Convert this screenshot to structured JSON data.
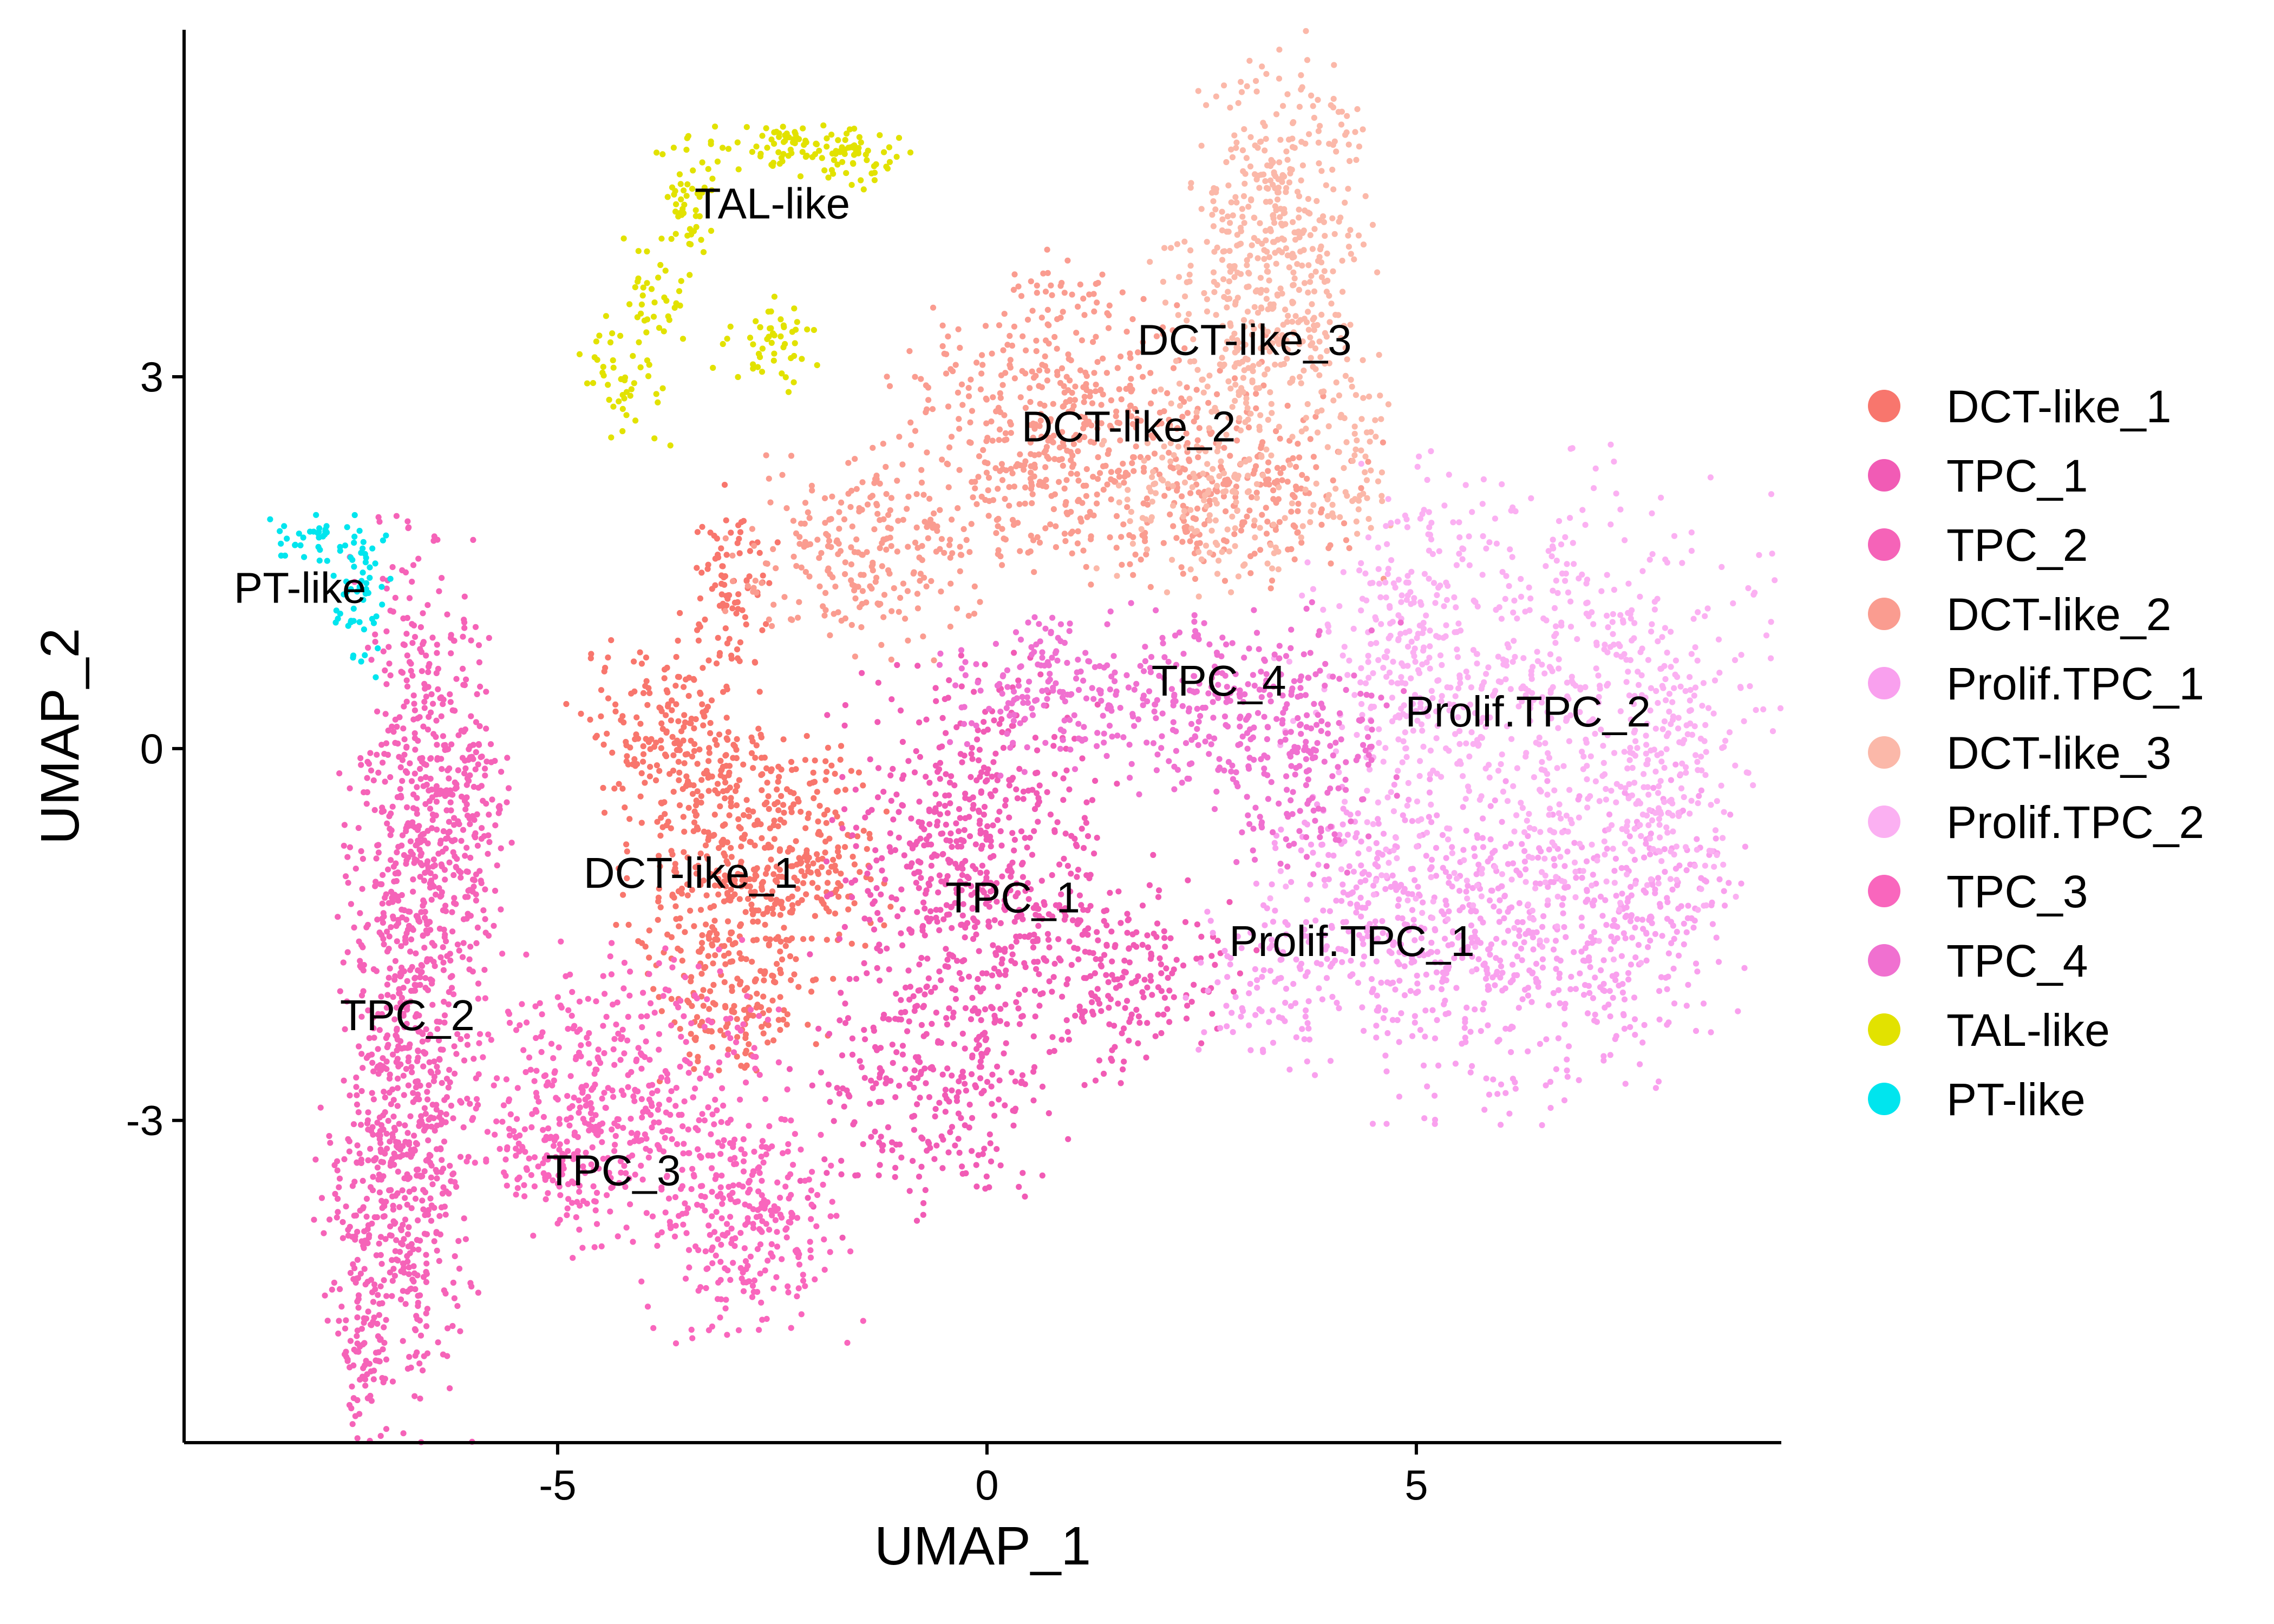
{
  "chart_data": {
    "type": "scatter",
    "xlabel": "UMAP_1",
    "ylabel": "UMAP_2",
    "xlim": [
      -9.35,
      9.25
    ],
    "ylim": [
      -5.6,
      5.8
    ],
    "x_ticks": [
      {
        "value": -5,
        "label": "-5"
      },
      {
        "value": 0,
        "label": "0"
      },
      {
        "value": 5,
        "label": "5"
      }
    ],
    "y_ticks": [
      {
        "value": -3,
        "label": "-3"
      },
      {
        "value": 0,
        "label": "0"
      },
      {
        "value": 3,
        "label": "3"
      }
    ],
    "grid": false,
    "legend_position": "right",
    "series": [
      {
        "name": "DCT-like_1",
        "color": "#F8766D",
        "label_at": [
          -3.45,
          -1.0
        ],
        "blobs": [
          {
            "cx": -3.0,
            "cy": -1.2,
            "sx": 0.55,
            "sy": 0.65,
            "n": 380
          },
          {
            "cx": -3.6,
            "cy": 0.1,
            "sx": 0.55,
            "sy": 0.35,
            "n": 220
          },
          {
            "cx": -2.05,
            "cy": -0.8,
            "sx": 0.4,
            "sy": 0.4,
            "n": 180
          },
          {
            "cx": -3.0,
            "cy": 1.3,
            "sx": 0.25,
            "sy": 0.35,
            "n": 90
          },
          {
            "cx": -2.8,
            "cy": -2.2,
            "sx": 0.3,
            "sy": 0.2,
            "n": 60
          }
        ]
      },
      {
        "name": "TPC_1",
        "color": "#F15BB5",
        "label_at": [
          0.3,
          -1.2
        ],
        "blobs": [
          {
            "cx": -0.2,
            "cy": -1.0,
            "sx": 0.75,
            "sy": 0.75,
            "n": 650
          },
          {
            "cx": 1.5,
            "cy": -1.8,
            "sx": 0.7,
            "sy": 0.4,
            "n": 220
          },
          {
            "cx": -0.7,
            "cy": -2.9,
            "sx": 0.7,
            "sy": 0.45,
            "n": 230
          }
        ]
      },
      {
        "name": "TPC_2",
        "color": "#F563B8",
        "label_at": [
          -6.75,
          -2.15
        ],
        "blobs": [
          {
            "cx": -6.75,
            "cy": -1.8,
            "sx": 0.35,
            "sy": 1.7,
            "n": 750
          },
          {
            "cx": -6.9,
            "cy": -3.6,
            "sx": 0.4,
            "sy": 0.55,
            "n": 250
          },
          {
            "cx": -7.3,
            "cy": -4.85,
            "sx": 0.12,
            "sy": 0.35,
            "n": 70
          },
          {
            "cx": -6.3,
            "cy": 0.0,
            "sx": 0.3,
            "sy": 0.6,
            "n": 150
          },
          {
            "cx": -6.1,
            "cy": -0.9,
            "sx": 0.3,
            "sy": 0.5,
            "n": 120
          }
        ]
      },
      {
        "name": "DCT-like_2",
        "color": "#FA9C90",
        "label_at": [
          1.65,
          2.6
        ],
        "blobs": [
          {
            "cx": 1.0,
            "cy": 2.5,
            "sx": 1.0,
            "sy": 0.5,
            "n": 550
          },
          {
            "cx": 3.1,
            "cy": 2.1,
            "sx": 0.65,
            "sy": 0.35,
            "n": 180
          },
          {
            "cx": -1.5,
            "cy": 1.55,
            "sx": 0.7,
            "sy": 0.35,
            "n": 230
          },
          {
            "cx": 0.9,
            "cy": 3.65,
            "sx": 0.3,
            "sy": 0.2,
            "n": 40
          }
        ]
      },
      {
        "name": "Prolif.TPC_1",
        "color": "#F9A0EE",
        "label_at": [
          4.25,
          -1.55
        ],
        "blobs": [
          {
            "cx": 5.9,
            "cy": -1.6,
            "sx": 0.9,
            "sy": 0.6,
            "n": 500
          },
          {
            "cx": 7.8,
            "cy": -1.3,
            "sx": 0.45,
            "sy": 0.5,
            "n": 180
          },
          {
            "cx": 4.2,
            "cy": -1.3,
            "sx": 0.5,
            "sy": 0.5,
            "n": 150
          },
          {
            "cx": 3.2,
            "cy": -1.9,
            "sx": 0.4,
            "sy": 0.3,
            "n": 80
          }
        ]
      },
      {
        "name": "DCT-like_3",
        "color": "#FBB8A9",
        "label_at": [
          3.0,
          3.3
        ],
        "blobs": [
          {
            "cx": 3.4,
            "cy": 4.4,
            "sx": 0.5,
            "sy": 0.6,
            "n": 300
          },
          {
            "cx": 3.2,
            "cy": 3.3,
            "sx": 0.6,
            "sy": 0.45,
            "n": 250
          },
          {
            "cx": 2.5,
            "cy": 2.0,
            "sx": 0.55,
            "sy": 0.4,
            "n": 150
          },
          {
            "cx": 4.3,
            "cy": 2.3,
            "sx": 0.3,
            "sy": 0.35,
            "n": 60
          }
        ]
      },
      {
        "name": "Prolif.TPC_2",
        "color": "#FBB0F2",
        "label_at": [
          6.3,
          0.3
        ],
        "blobs": [
          {
            "cx": 6.4,
            "cy": 0.3,
            "sx": 1.3,
            "sy": 0.9,
            "n": 700
          },
          {
            "cx": 4.8,
            "cy": 1.0,
            "sx": 0.4,
            "sy": 0.55,
            "n": 140
          },
          {
            "cx": 7.9,
            "cy": -0.1,
            "sx": 0.3,
            "sy": 0.55,
            "n": 120
          }
        ]
      },
      {
        "name": "TPC_3",
        "color": "#F966BD",
        "label_at": [
          -4.35,
          -3.4
        ],
        "blobs": [
          {
            "cx": -4.2,
            "cy": -2.8,
            "sx": 0.85,
            "sy": 0.55,
            "n": 450
          },
          {
            "cx": -2.8,
            "cy": -3.9,
            "sx": 0.6,
            "sy": 0.4,
            "n": 250
          },
          {
            "cx": -5.1,
            "cy": -3.3,
            "sx": 0.5,
            "sy": 0.35,
            "n": 100
          }
        ]
      },
      {
        "name": "TPC_4",
        "color": "#F070D0",
        "label_at": [
          2.7,
          0.55
        ],
        "blobs": [
          {
            "cx": 2.8,
            "cy": 0.35,
            "sx": 0.9,
            "sy": 0.35,
            "n": 300
          },
          {
            "cx": 0.6,
            "cy": 0.5,
            "sx": 0.55,
            "sy": 0.3,
            "n": 150
          },
          {
            "cx": 3.6,
            "cy": -0.3,
            "sx": 0.5,
            "sy": 0.35,
            "n": 100
          }
        ]
      },
      {
        "name": "TAL-like",
        "color": "#E2E200",
        "label_at": [
          -2.5,
          4.4
        ],
        "blobs": [
          {
            "cx": -3.5,
            "cy": 4.4,
            "sx": 0.2,
            "sy": 0.25,
            "n": 50
          },
          {
            "cx": -2.3,
            "cy": 4.85,
            "sx": 0.5,
            "sy": 0.1,
            "n": 80
          },
          {
            "cx": -1.5,
            "cy": 4.75,
            "sx": 0.3,
            "sy": 0.12,
            "n": 40
          },
          {
            "cx": -4.2,
            "cy": 3.0,
            "sx": 0.25,
            "sy": 0.3,
            "n": 50
          },
          {
            "cx": -3.9,
            "cy": 3.65,
            "sx": 0.2,
            "sy": 0.25,
            "n": 30
          },
          {
            "cx": -2.5,
            "cy": 3.25,
            "sx": 0.3,
            "sy": 0.18,
            "n": 50
          }
        ]
      },
      {
        "name": "PT-like",
        "color": "#00E5EE",
        "label_at": [
          -8.0,
          1.3
        ],
        "blobs": [
          {
            "cx": -7.8,
            "cy": 1.7,
            "sx": 0.3,
            "sy": 0.1,
            "n": 40
          },
          {
            "cx": -7.3,
            "cy": 1.2,
            "sx": 0.18,
            "sy": 0.3,
            "n": 50
          }
        ]
      }
    ]
  }
}
